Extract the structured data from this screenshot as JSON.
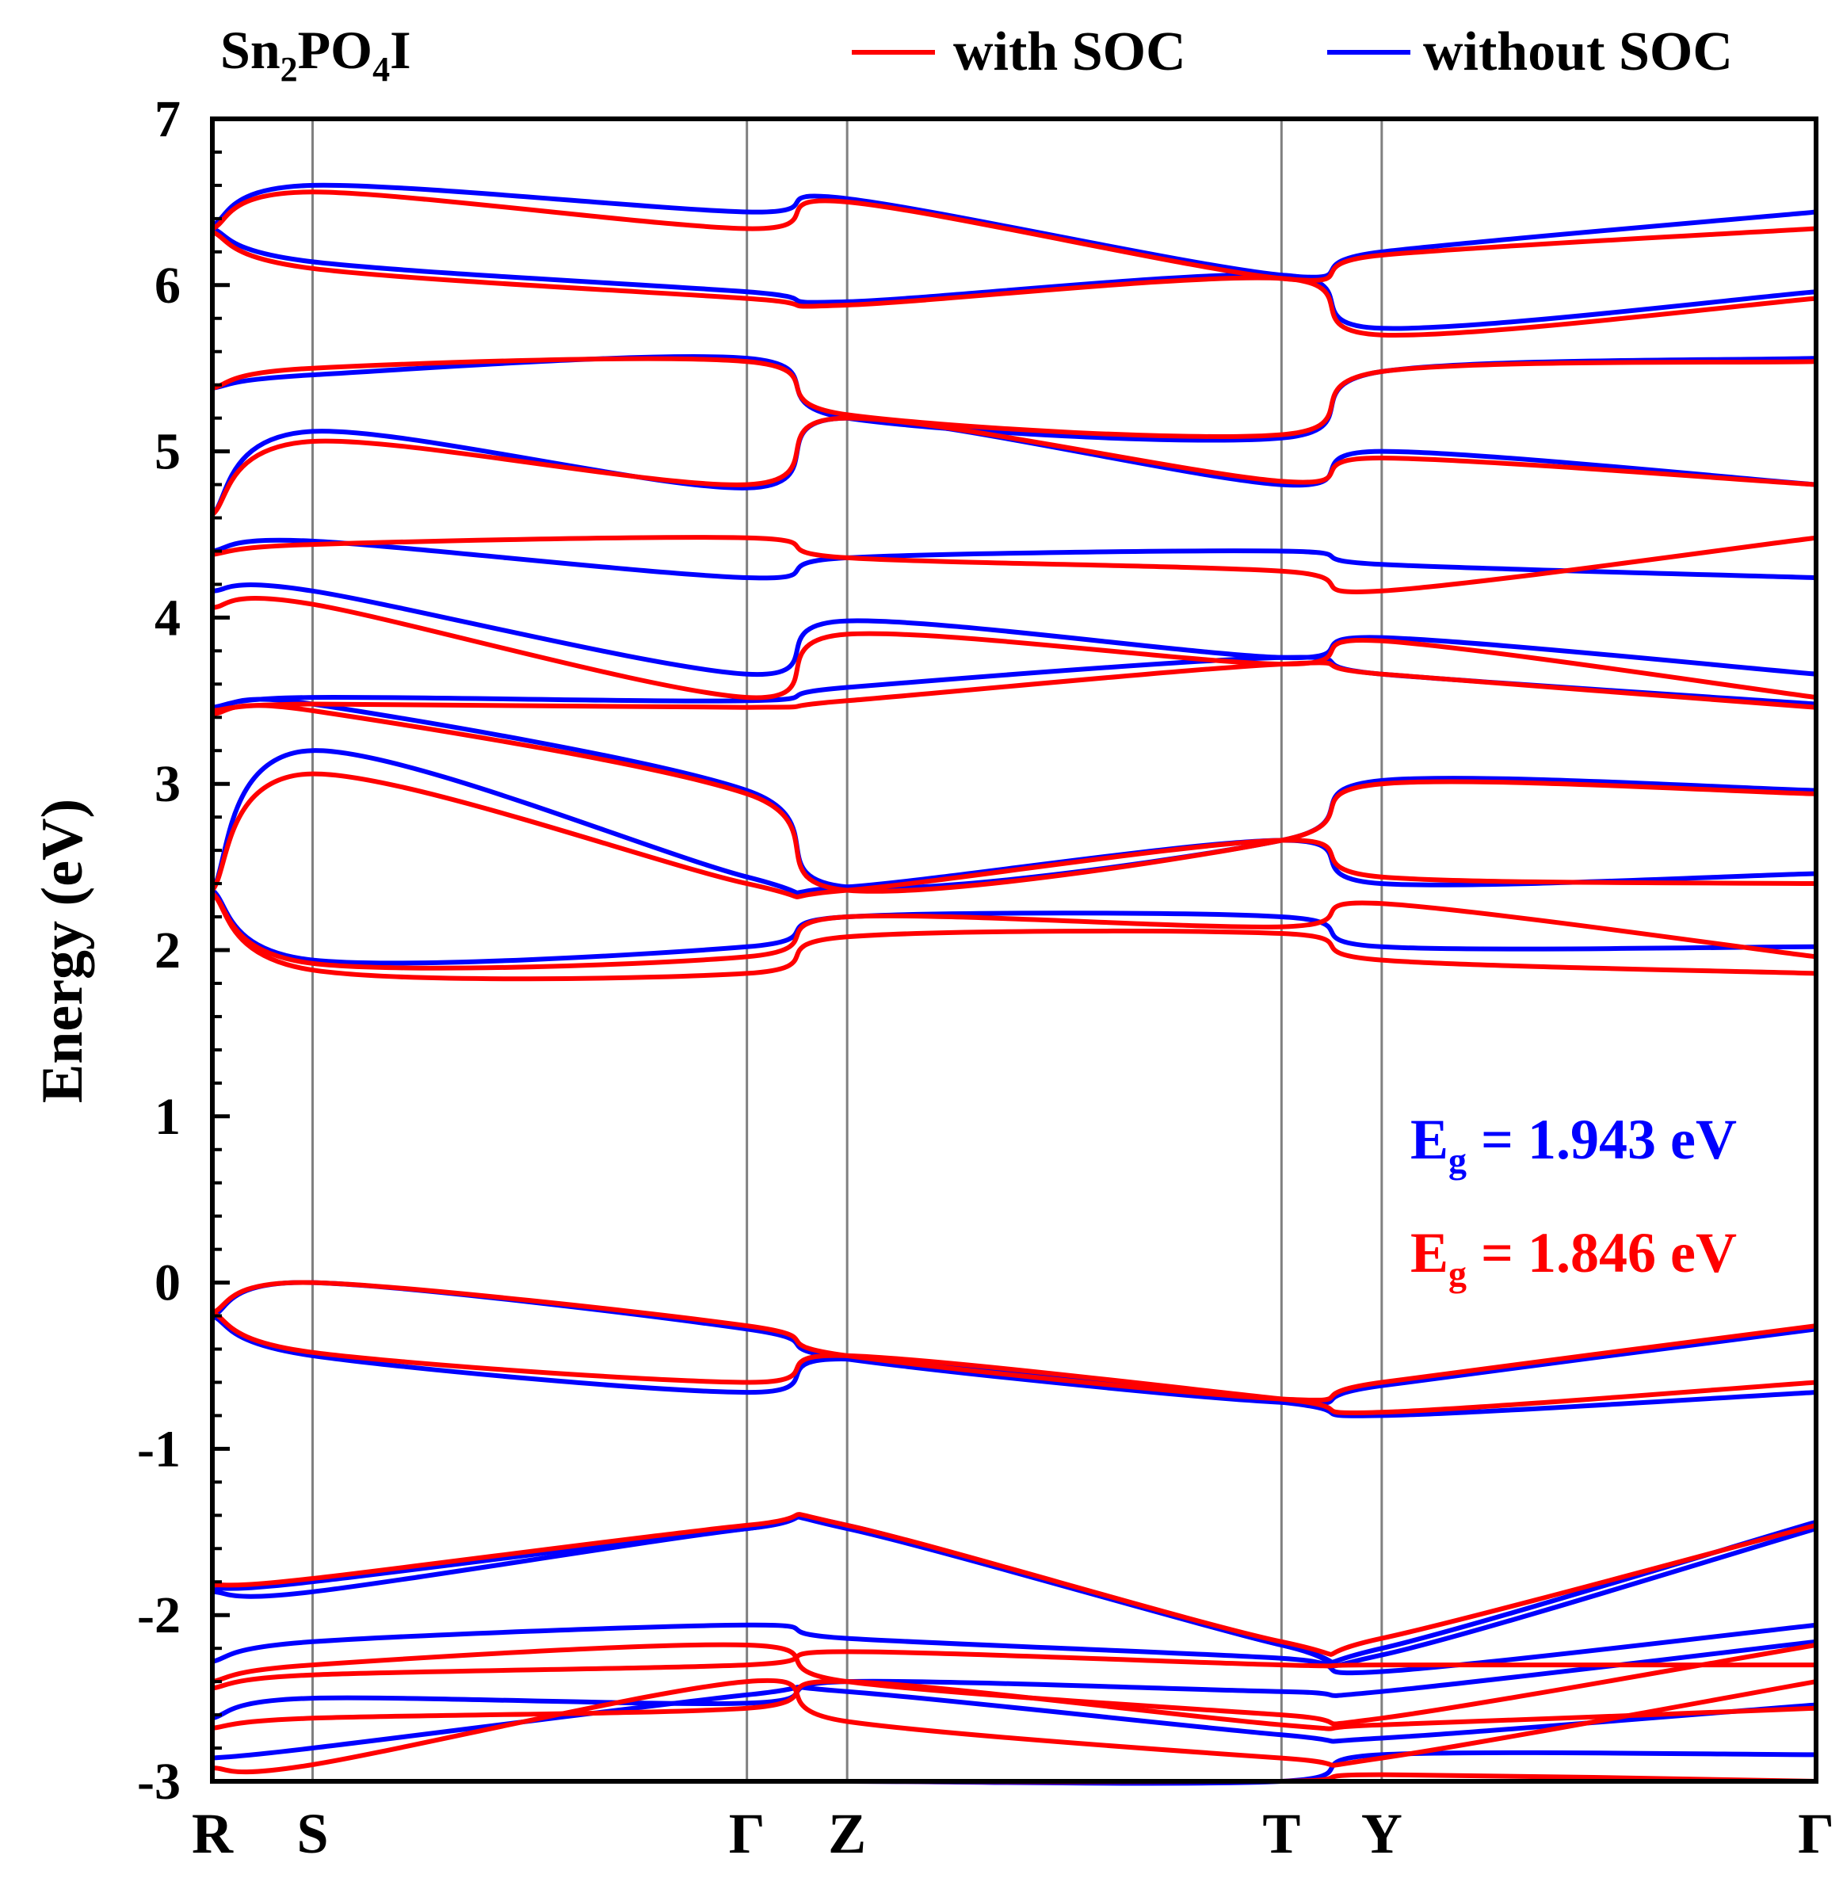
{
  "chart_data": {
    "type": "line",
    "title": "Sn2PO4I",
    "title_parts": {
      "base": "Sn",
      "sub1": "2",
      "mid": "PO",
      "sub2": "4",
      "end": "I"
    },
    "ylabel": "Energy (eV)",
    "xlabel": "",
    "ylim": [
      -3,
      7
    ],
    "y_ticks": [
      "7",
      "6",
      "5",
      "4",
      "3",
      "2",
      "1",
      "0",
      "-1",
      "-2",
      "-3"
    ],
    "y_tick_values": [
      7,
      6,
      5,
      4,
      3,
      2,
      1,
      0,
      -1,
      -2,
      -3
    ],
    "k_path": [
      "R",
      "S",
      "Γ",
      "Z",
      "T",
      "Y",
      "Γ"
    ],
    "k_positions": [
      0,
      0.3,
      1.6,
      1.9,
      3.2,
      3.5,
      4.8
    ],
    "legend_position": "top-right",
    "legend": [
      {
        "name": "with SOC",
        "color": "#ff0000"
      },
      {
        "name": "without SOC",
        "color": "#0000ff"
      }
    ],
    "annotations": [
      {
        "label": "E",
        "sub": "g",
        "text": " = 1.943 eV",
        "color": "#0000ff"
      },
      {
        "label": "E",
        "sub": "g",
        "text": " = 1.846 eV",
        "color": "#ff0000"
      }
    ],
    "band_gap_without_soc_eV": 1.943,
    "band_gap_with_soc_eV": 1.846,
    "series": [
      {
        "name": "without SOC",
        "color": "#0000ff",
        "bands": [
          [
            -3.0,
            -3.0,
            -3.0,
            -3.0,
            -3.0,
            -2.84,
            -2.84
          ],
          [
            -2.86,
            -2.8,
            -2.48,
            -2.46,
            -2.72,
            -2.74,
            -2.54
          ],
          [
            -2.62,
            -2.5,
            -2.53,
            -2.4,
            -2.46,
            -2.46,
            -2.16
          ],
          [
            -2.28,
            -2.16,
            -2.06,
            -2.14,
            -2.26,
            -2.34,
            -2.06
          ],
          [
            -1.86,
            -1.86,
            -1.48,
            -1.48,
            -2.18,
            -2.24,
            -1.48
          ],
          [
            -1.84,
            -1.8,
            -1.48,
            -1.46,
            -2.18,
            -2.2,
            -1.44
          ],
          [
            -0.2,
            -0.44,
            -0.66,
            -0.46,
            -0.72,
            -0.8,
            -0.66
          ],
          [
            -0.2,
            0.0,
            -0.28,
            -0.46,
            -0.72,
            -0.62,
            -0.28
          ],
          [
            2.36,
            1.94,
            2.02,
            2.2,
            2.2,
            2.02,
            2.02
          ],
          [
            2.36,
            3.2,
            2.44,
            2.38,
            2.66,
            2.4,
            2.46
          ],
          [
            3.44,
            3.48,
            2.96,
            2.38,
            2.66,
            3.02,
            2.96
          ],
          [
            3.46,
            3.52,
            3.5,
            3.58,
            3.76,
            3.66,
            3.48
          ],
          [
            4.16,
            4.16,
            3.66,
            3.98,
            3.76,
            3.88,
            3.66
          ],
          [
            4.4,
            4.46,
            4.24,
            4.36,
            4.4,
            4.32,
            4.24
          ],
          [
            4.62,
            5.12,
            4.78,
            5.2,
            4.8,
            5.0,
            4.8
          ],
          [
            5.38,
            5.46,
            5.56,
            5.2,
            5.08,
            5.48,
            5.56
          ],
          [
            6.34,
            6.14,
            5.96,
            5.9,
            6.06,
            5.74,
            5.96
          ],
          [
            6.36,
            6.6,
            6.44,
            6.52,
            6.06,
            6.2,
            6.44
          ]
        ]
      },
      {
        "name": "with SOC",
        "color": "#ff0000",
        "bands": [
          [
            -3.0,
            -3.0,
            -3.0,
            -3.0,
            -3.0,
            -2.96,
            -3.0
          ],
          [
            -2.92,
            -2.9,
            -2.4,
            -2.64,
            -2.86,
            -2.86,
            -2.4
          ],
          [
            -2.68,
            -2.62,
            -2.56,
            -2.4,
            -2.66,
            -2.66,
            -2.56
          ],
          [
            -2.44,
            -2.36,
            -2.3,
            -2.22,
            -2.3,
            -2.3,
            -2.3
          ],
          [
            -2.4,
            -2.3,
            -2.18,
            -2.4,
            -2.6,
            -2.62,
            -2.18
          ],
          [
            -1.82,
            -1.78,
            -1.46,
            -1.46,
            -2.16,
            -2.14,
            -1.46
          ],
          [
            -0.18,
            -0.42,
            -0.6,
            -0.44,
            -0.7,
            -0.78,
            -0.6
          ],
          [
            -0.18,
            0.0,
            -0.26,
            -0.44,
            -0.7,
            -0.6,
            -0.26
          ],
          [
            2.34,
            1.88,
            1.86,
            2.08,
            2.1,
            1.94,
            1.86
          ],
          [
            2.34,
            1.92,
            1.96,
            2.2,
            2.14,
            2.28,
            1.96
          ],
          [
            2.36,
            3.06,
            2.4,
            2.36,
            2.66,
            2.44,
            2.4
          ],
          [
            3.42,
            3.44,
            2.94,
            2.36,
            2.66,
            3.0,
            2.94
          ],
          [
            3.44,
            3.48,
            3.46,
            3.5,
            3.72,
            3.66,
            3.46
          ],
          [
            4.06,
            4.08,
            3.52,
            3.9,
            3.72,
            3.86,
            3.52
          ],
          [
            4.38,
            4.44,
            4.48,
            4.36,
            4.28,
            4.16,
            4.48
          ],
          [
            4.62,
            5.06,
            4.8,
            5.2,
            4.82,
            4.96,
            4.8
          ],
          [
            5.38,
            5.5,
            5.54,
            5.22,
            5.1,
            5.48,
            5.54
          ],
          [
            6.32,
            6.1,
            5.92,
            5.88,
            6.04,
            5.7,
            5.92
          ],
          [
            6.34,
            6.56,
            6.34,
            6.5,
            6.04,
            6.18,
            6.34
          ]
        ]
      }
    ]
  }
}
